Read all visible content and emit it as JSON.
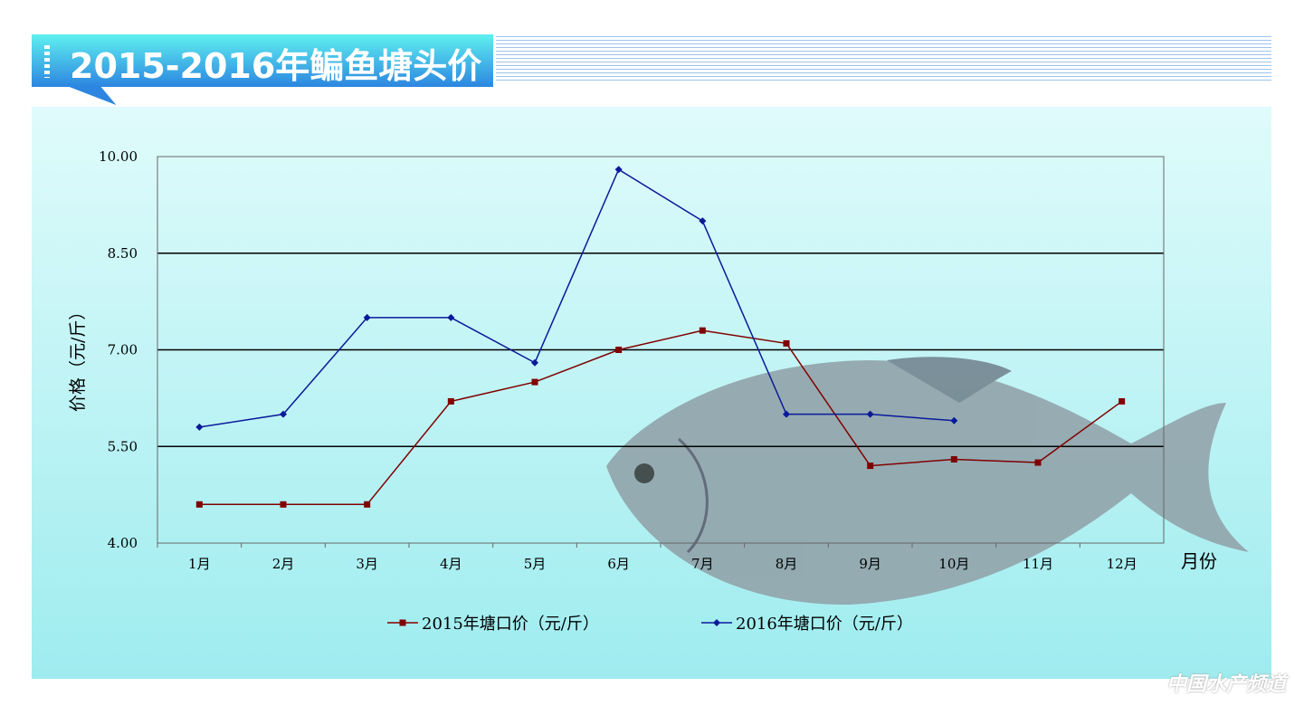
{
  "header": {
    "title": "2015-2016年鳊鱼塘头价"
  },
  "watermark": "中国水产频道",
  "colors": {
    "series_2015": "#800000",
    "series_2016": "#0a1a9a",
    "banner": "#2c86e0",
    "panel": "#b8f2f4"
  },
  "chart_data": {
    "type": "line",
    "title": "",
    "xlabel": "月份",
    "ylabel": "价格（元/斤）",
    "ylim": [
      4.0,
      10.0
    ],
    "yticks": [
      "4.00",
      "5.50",
      "7.00",
      "8.50",
      "10.00"
    ],
    "grid": "horizontal",
    "legend": "bottom",
    "categories": [
      "1月",
      "2月",
      "3月",
      "4月",
      "5月",
      "6月",
      "7月",
      "8月",
      "9月",
      "10月",
      "11月",
      "12月"
    ],
    "series": [
      {
        "name": "2015年塘口价（元/斤）",
        "marker": "square",
        "values": [
          4.6,
          4.6,
          4.6,
          6.2,
          6.5,
          7.0,
          7.3,
          7.1,
          5.2,
          5.3,
          5.25,
          6.2
        ]
      },
      {
        "name": "2016年塘口价（元/斤）",
        "marker": "diamond",
        "values": [
          5.8,
          6.0,
          7.5,
          7.5,
          6.8,
          9.8,
          9.0,
          6.0,
          6.0,
          5.9,
          null,
          null
        ]
      }
    ]
  }
}
